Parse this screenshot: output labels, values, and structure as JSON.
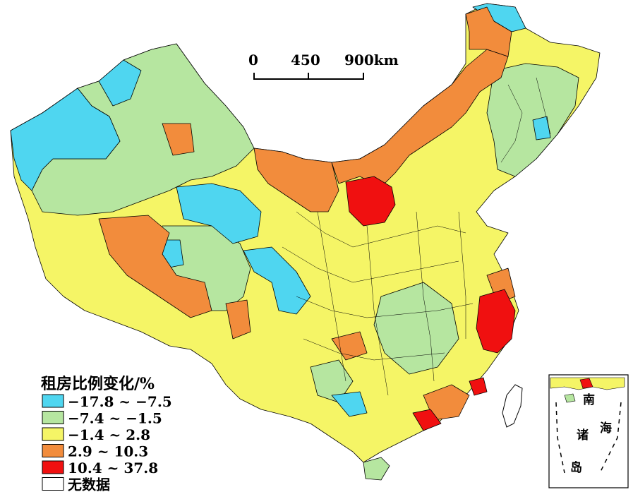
{
  "scale_bar": {
    "labels": [
      "0",
      "450",
      "900km"
    ]
  },
  "legend": {
    "title": "租房比例变化/%",
    "items": [
      {
        "label": "−17.8 ~ −7.5",
        "color": "#4fd6f0"
      },
      {
        "label": "−7.4 ~ −1.5",
        "color": "#b6e6a0"
      },
      {
        "label": "−1.4 ~ 2.8",
        "color": "#f5f566"
      },
      {
        "label": "2.9 ~ 10.3",
        "color": "#f28c3c"
      },
      {
        "label": "10.4 ~ 37.8",
        "color": "#f01010"
      },
      {
        "label": "无数据",
        "color": "#ffffff"
      }
    ]
  },
  "inset": {
    "labels": [
      "南",
      "海",
      "诸",
      "岛"
    ]
  }
}
